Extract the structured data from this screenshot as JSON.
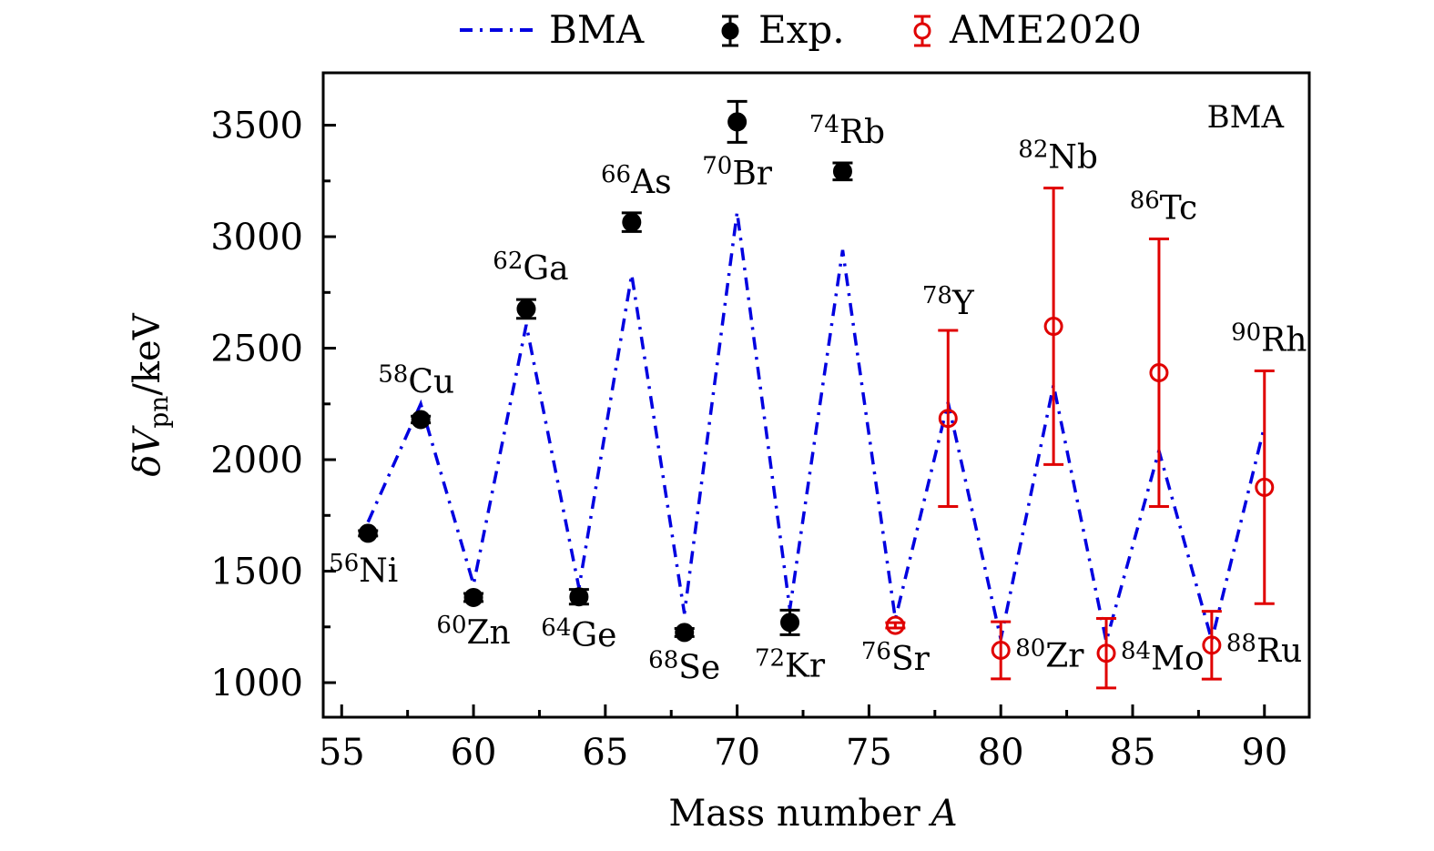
{
  "chart_data": {
    "type": "scatter",
    "title": "",
    "corner_label": "BMA",
    "xlabel": "Mass number",
    "xlabel_italic": "A",
    "ylabel_main": "δV",
    "ylabel_sub": "pn",
    "ylabel_unit": "/keV",
    "xlim": [
      54.3,
      91.7
    ],
    "ylim": [
      845,
      3735
    ],
    "xticks": [
      55,
      60,
      65,
      70,
      75,
      80,
      85,
      90
    ],
    "xtick_labels": [
      "55",
      "60",
      "65",
      "70",
      "75",
      "80",
      "85",
      "90"
    ],
    "xminor": [
      57.5,
      62.5,
      67.5,
      72.5,
      77.5,
      82.5,
      87.5
    ],
    "yticks": [
      1000,
      1500,
      2000,
      2500,
      3000,
      3500
    ],
    "ytick_labels": [
      "1000",
      "1500",
      "2000",
      "2500",
      "3000",
      "3500"
    ],
    "yminor": [
      1250,
      1750,
      2250,
      2750,
      3250
    ],
    "grid": false,
    "legend_position": "top-outside",
    "colors": {
      "bma": "#0000e0",
      "exp": "#000000",
      "ame": "#e00000"
    },
    "legend": [
      {
        "key": "bma",
        "label": "BMA",
        "style": "dash-dot line"
      },
      {
        "key": "exp",
        "label": "Exp.",
        "style": "filled circle with error bar"
      },
      {
        "key": "ame",
        "label": "AME2020",
        "style": "open circle with error bar"
      }
    ],
    "series": [
      {
        "name": "BMA",
        "kind": "line",
        "x": [
          56,
          58,
          60,
          62,
          64,
          66,
          68,
          70,
          72,
          74,
          76,
          78,
          80,
          82,
          84,
          86,
          88,
          90
        ],
        "y": [
          1720,
          2250,
          1440,
          2605,
          1425,
          2830,
          1310,
          3110,
          1330,
          2940,
          1285,
          2257,
          1195,
          2335,
          1185,
          2040,
          1190,
          2150
        ]
      },
      {
        "name": "Exp.",
        "kind": "errorbar-filled",
        "points": [
          {
            "x": 56,
            "y": 1670,
            "err": 12,
            "label": "Ni",
            "mass": "56",
            "pos": "below-left"
          },
          {
            "x": 58,
            "y": 2180,
            "err": 15,
            "label": "Cu",
            "mass": "58",
            "pos": "above"
          },
          {
            "x": 60,
            "y": 1382,
            "err": 18,
            "label": "Zn",
            "mass": "60",
            "pos": "below"
          },
          {
            "x": 62,
            "y": 2676,
            "err": 42,
            "label": "Ga",
            "mass": "62",
            "pos": "above"
          },
          {
            "x": 64,
            "y": 1385,
            "err": 33,
            "label": "Ge",
            "mass": "64",
            "pos": "below"
          },
          {
            "x": 66,
            "y": 3065,
            "err": 42,
            "label": "As",
            "mass": "66",
            "pos": "above"
          },
          {
            "x": 68,
            "y": 1225,
            "err": 18,
            "label": "Se",
            "mass": "68",
            "pos": "below"
          },
          {
            "x": 70,
            "y": 3515,
            "err": 92,
            "label": "Br",
            "mass": "70",
            "pos": "below"
          },
          {
            "x": 72,
            "y": 1270,
            "err": 55,
            "label": "Kr",
            "mass": "72",
            "pos": "below"
          },
          {
            "x": 74,
            "y": 3293,
            "err": 38,
            "label": "Rb",
            "mass": "74",
            "pos": "above"
          }
        ]
      },
      {
        "name": "AME2020",
        "kind": "errorbar-open",
        "points": [
          {
            "x": 76,
            "y": 1257,
            "err": 12,
            "label": "Sr",
            "mass": "76",
            "pos": "below"
          },
          {
            "x": 78,
            "y": 2185,
            "err": 395,
            "label": "Y",
            "mass": "78",
            "pos": "above"
          },
          {
            "x": 80,
            "y": 1145,
            "err": 128,
            "label": "Zr",
            "mass": "80",
            "pos": "right"
          },
          {
            "x": 82,
            "y": 2598,
            "err": 620,
            "label": "Nb",
            "mass": "82",
            "pos": "above"
          },
          {
            "x": 84,
            "y": 1132,
            "err": 156,
            "label": "Mo",
            "mass": "84",
            "pos": "right"
          },
          {
            "x": 86,
            "y": 2390,
            "err": 600,
            "label": "Tc",
            "mass": "86",
            "pos": "above"
          },
          {
            "x": 88,
            "y": 1168,
            "err": 152,
            "label": "Ru",
            "mass": "88",
            "pos": "right"
          },
          {
            "x": 90,
            "y": 1876,
            "err": 522,
            "label": "Rh",
            "mass": "90",
            "pos": "above"
          }
        ]
      }
    ]
  }
}
